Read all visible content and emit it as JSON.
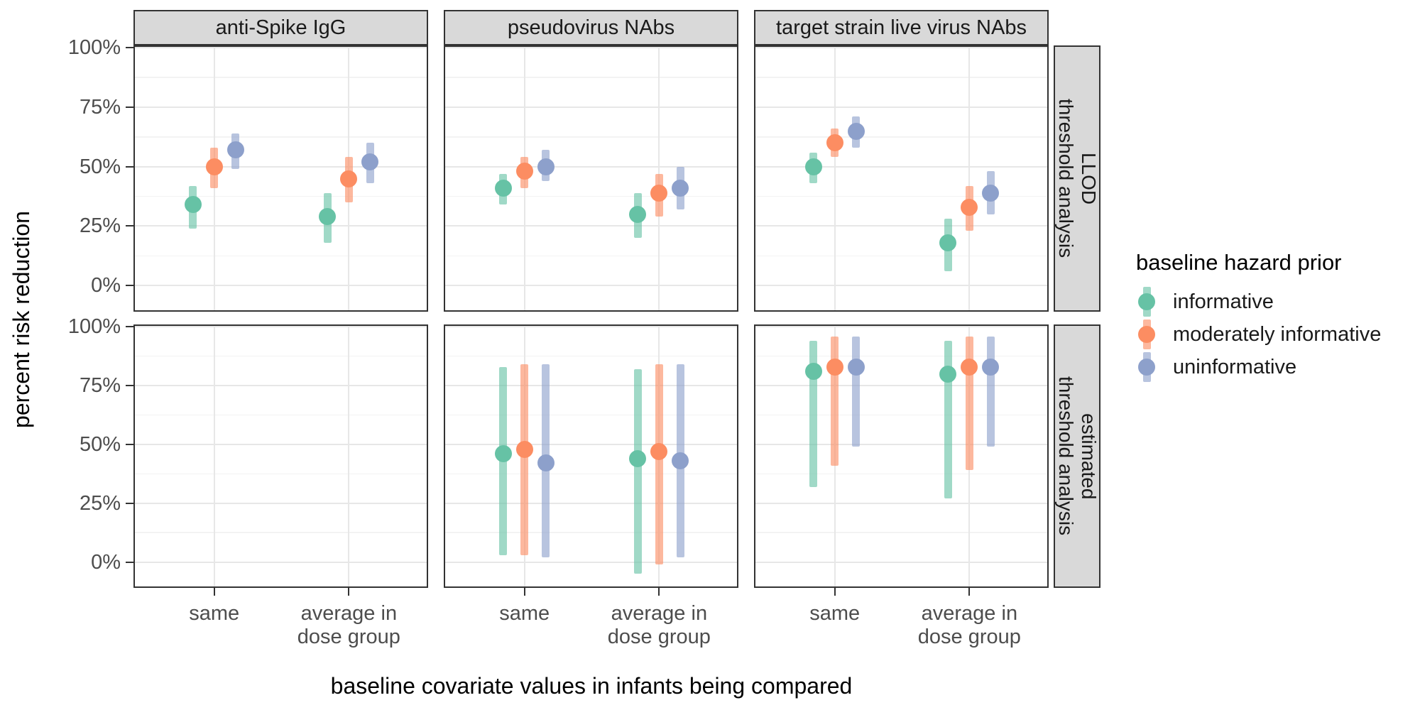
{
  "axes": {
    "y_title": "percent risk reduction",
    "x_title": "baseline covariate values in infants being compared",
    "y_ticks": [
      {
        "label": "100%",
        "value": 100
      },
      {
        "label": "75%",
        "value": 75
      },
      {
        "label": "50%",
        "value": 50
      },
      {
        "label": "25%",
        "value": 25
      },
      {
        "label": "0%",
        "value": 0
      }
    ],
    "y_minor_gridlines": [
      87.5,
      62.5,
      37.5,
      12.5
    ],
    "x_categories": [
      {
        "key": "same",
        "label_lines": [
          "same"
        ]
      },
      {
        "key": "average in dose group",
        "label_lines": [
          "average in",
          "dose group"
        ]
      }
    ]
  },
  "facets": {
    "columns": [
      "anti-Spike IgG",
      "pseudovirus NAbs",
      "target strain live virus NAbs"
    ],
    "rows": [
      [
        "LLOD",
        "threshold analysis"
      ],
      [
        "estimated",
        "threshold analysis"
      ]
    ]
  },
  "legend": {
    "title": "baseline hazard prior",
    "items": [
      {
        "label": "informative",
        "color": "#66C2A5"
      },
      {
        "label": "moderately informative",
        "color": "#FC8D62"
      },
      {
        "label": "uninformative",
        "color": "#8DA0CB"
      }
    ]
  },
  "chart_data": {
    "type": "pointrange",
    "title": "",
    "xlabel": "baseline covariate values in infants being compared",
    "ylabel": "percent risk reduction",
    "y_unit": "percent",
    "ylim": [
      -11,
      101
    ],
    "grid": "on",
    "legend_position": "right",
    "facet_rows": [
      "LLOD threshold analysis",
      "estimated threshold analysis"
    ],
    "facet_columns": [
      "anti-Spike IgG",
      "pseudovirus NAbs",
      "target strain live virus NAbs"
    ],
    "x_categories": [
      "same",
      "average in dose group"
    ],
    "series": [
      {
        "name": "informative",
        "color": "#66C2A5"
      },
      {
        "name": "moderately informative",
        "color": "#FC8D62"
      },
      {
        "name": "uninformative",
        "color": "#8DA0CB"
      }
    ],
    "points": [
      {
        "row": 0,
        "col": 0,
        "x": 0,
        "series": 0,
        "est": 34,
        "lo": 24,
        "hi": 42
      },
      {
        "row": 0,
        "col": 0,
        "x": 0,
        "series": 1,
        "est": 50,
        "lo": 41,
        "hi": 58
      },
      {
        "row": 0,
        "col": 0,
        "x": 0,
        "series": 2,
        "est": 57,
        "lo": 49,
        "hi": 64
      },
      {
        "row": 0,
        "col": 0,
        "x": 1,
        "series": 0,
        "est": 29,
        "lo": 18,
        "hi": 39
      },
      {
        "row": 0,
        "col": 0,
        "x": 1,
        "series": 1,
        "est": 45,
        "lo": 35,
        "hi": 54
      },
      {
        "row": 0,
        "col": 0,
        "x": 1,
        "series": 2,
        "est": 52,
        "lo": 43,
        "hi": 60
      },
      {
        "row": 0,
        "col": 1,
        "x": 0,
        "series": 0,
        "est": 41,
        "lo": 34,
        "hi": 47
      },
      {
        "row": 0,
        "col": 1,
        "x": 0,
        "series": 1,
        "est": 48,
        "lo": 41,
        "hi": 54
      },
      {
        "row": 0,
        "col": 1,
        "x": 0,
        "series": 2,
        "est": 50,
        "lo": 44,
        "hi": 57
      },
      {
        "row": 0,
        "col": 1,
        "x": 1,
        "series": 0,
        "est": 30,
        "lo": 20,
        "hi": 39
      },
      {
        "row": 0,
        "col": 1,
        "x": 1,
        "series": 1,
        "est": 39,
        "lo": 29,
        "hi": 47
      },
      {
        "row": 0,
        "col": 1,
        "x": 1,
        "series": 2,
        "est": 41,
        "lo": 32,
        "hi": 50
      },
      {
        "row": 0,
        "col": 2,
        "x": 0,
        "series": 0,
        "est": 50,
        "lo": 43,
        "hi": 56
      },
      {
        "row": 0,
        "col": 2,
        "x": 0,
        "series": 1,
        "est": 60,
        "lo": 54,
        "hi": 66
      },
      {
        "row": 0,
        "col": 2,
        "x": 0,
        "series": 2,
        "est": 65,
        "lo": 58,
        "hi": 71
      },
      {
        "row": 0,
        "col": 2,
        "x": 1,
        "series": 0,
        "est": 18,
        "lo": 6,
        "hi": 28
      },
      {
        "row": 0,
        "col": 2,
        "x": 1,
        "series": 1,
        "est": 33,
        "lo": 23,
        "hi": 42
      },
      {
        "row": 0,
        "col": 2,
        "x": 1,
        "series": 2,
        "est": 39,
        "lo": 30,
        "hi": 48
      },
      {
        "row": 1,
        "col": 1,
        "x": 0,
        "series": 0,
        "est": 46,
        "lo": 3,
        "hi": 83
      },
      {
        "row": 1,
        "col": 1,
        "x": 0,
        "series": 1,
        "est": 48,
        "lo": 3,
        "hi": 84
      },
      {
        "row": 1,
        "col": 1,
        "x": 0,
        "series": 2,
        "est": 42,
        "lo": 2,
        "hi": 84
      },
      {
        "row": 1,
        "col": 1,
        "x": 1,
        "series": 0,
        "est": 44,
        "lo": -5,
        "hi": 82
      },
      {
        "row": 1,
        "col": 1,
        "x": 1,
        "series": 1,
        "est": 47,
        "lo": -1,
        "hi": 84
      },
      {
        "row": 1,
        "col": 1,
        "x": 1,
        "series": 2,
        "est": 43,
        "lo": 2,
        "hi": 84
      },
      {
        "row": 1,
        "col": 2,
        "x": 0,
        "series": 0,
        "est": 81,
        "lo": 32,
        "hi": 94
      },
      {
        "row": 1,
        "col": 2,
        "x": 0,
        "series": 1,
        "est": 83,
        "lo": 41,
        "hi": 96
      },
      {
        "row": 1,
        "col": 2,
        "x": 0,
        "series": 2,
        "est": 83,
        "lo": 49,
        "hi": 96
      },
      {
        "row": 1,
        "col": 2,
        "x": 1,
        "series": 0,
        "est": 80,
        "lo": 27,
        "hi": 94
      },
      {
        "row": 1,
        "col": 2,
        "x": 1,
        "series": 1,
        "est": 83,
        "lo": 39,
        "hi": 96
      },
      {
        "row": 1,
        "col": 2,
        "x": 1,
        "series": 2,
        "est": 83,
        "lo": 49,
        "hi": 96
      }
    ]
  }
}
